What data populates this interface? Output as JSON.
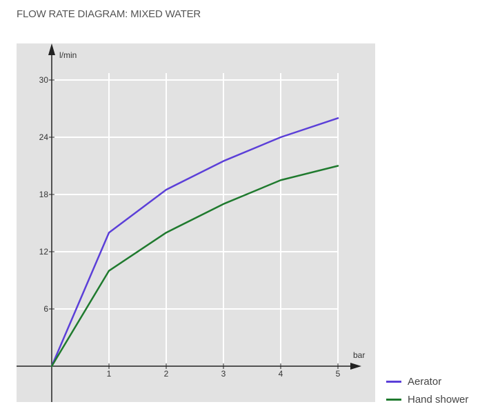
{
  "chart_data": {
    "type": "line",
    "title": "FLOW RATE DIAGRAM: MIXED WATER",
    "xlabel": "bar",
    "ylabel": "l/min",
    "x": [
      0,
      1,
      2,
      3,
      4,
      5
    ],
    "xticks": [
      "1",
      "2",
      "3",
      "4",
      "5"
    ],
    "yticks": [
      "6",
      "12",
      "18",
      "24",
      "30"
    ],
    "xlim": [
      0,
      5
    ],
    "ylim": [
      0,
      30
    ],
    "grid": true,
    "legend_position": "bottom-right",
    "background_color": "#e2e2e2",
    "grid_color": "#ffffff",
    "axis_color": "#222222",
    "series": [
      {
        "name": "Aerator",
        "color": "#5b3fd8",
        "values": [
          0,
          14,
          18.5,
          21.5,
          24,
          26
        ]
      },
      {
        "name": "Hand shower",
        "color": "#1f7a2e",
        "values": [
          0,
          10,
          14,
          17,
          19.5,
          21
        ]
      }
    ]
  }
}
